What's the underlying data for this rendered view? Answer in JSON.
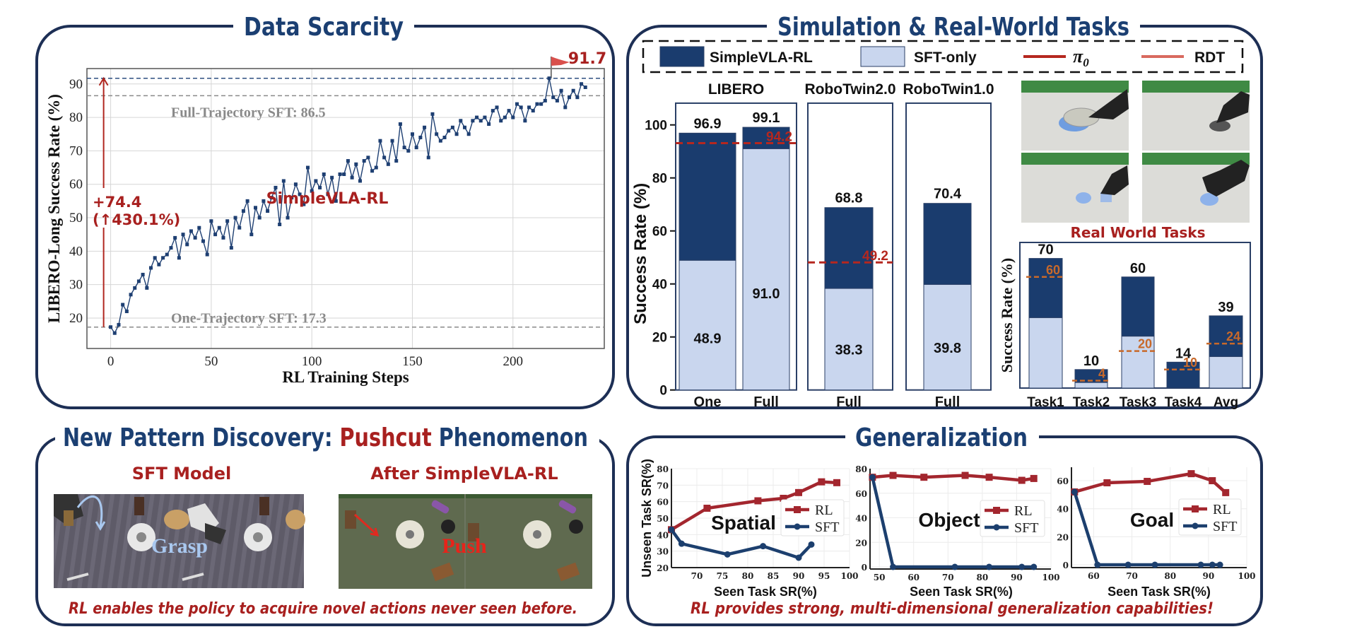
{
  "panels": {
    "data_scarcity": {
      "title": "Data Scarcity"
    },
    "simulation": {
      "title": "Simulation & Real-World Tasks",
      "real_world_label": "Real World Tasks"
    },
    "pushcut": {
      "title_part1": "New Pattern Discovery: ",
      "title_highlight": "Pushcut",
      "title_part2": " Phenomenon",
      "sft_label": "SFT Model",
      "rl_label": "After SimpleVLA-RL",
      "grasp_label": "Grasp",
      "push_label": "Push",
      "caption": "RL enables the policy to acquire novel actions never seen before."
    },
    "generalization": {
      "title": "Generalization",
      "caption": "RL provides strong, multi-dimensional generalization capabilities!"
    }
  },
  "legend": {
    "simplevla": "SimpleVLA-RL",
    "sft_only": "SFT-only",
    "pi0_symbol": "π",
    "pi0_subscript": "0",
    "rdt": "RDT"
  },
  "colors": {
    "title_navy": "#1b3f72",
    "accent_red": "#a8201f",
    "rl_bar": "#1a3c6e",
    "sft_bar": "#c9d6ee",
    "pi0_line": "#b5271f",
    "rdt_line": "#c8692a",
    "gen_rl": "#a3262e",
    "gen_sft": "#1c3f6e",
    "ref_gray": "#8a8a8a"
  },
  "chart_data": [
    {
      "type": "line",
      "xlabel": "RL Training Steps",
      "ylabel": "LIBERO-Long Success Rate (%)",
      "xlim": [
        -11.8,
        245.4
      ],
      "ylim": [
        10.9,
        94.6
      ],
      "xticks": [
        0,
        50,
        100,
        150,
        200
      ],
      "yticks": [
        20,
        30,
        40,
        50,
        60,
        70,
        80,
        90
      ],
      "grid": true,
      "series": [
        {
          "name": "SimpleVLA-RL",
          "x": [
            0,
            2,
            4,
            6,
            8,
            10,
            12,
            14,
            16,
            18,
            20,
            22,
            24,
            26,
            28,
            30,
            32,
            34,
            36,
            38,
            40,
            42,
            44,
            46,
            48,
            50,
            52,
            54,
            56,
            58,
            60,
            62,
            64,
            66,
            68,
            70,
            72,
            74,
            76,
            78,
            80,
            82,
            84,
            86,
            88,
            90,
            92,
            94,
            96,
            98,
            100,
            102,
            104,
            106,
            108,
            110,
            112,
            114,
            116,
            118,
            120,
            122,
            124,
            126,
            128,
            130,
            132,
            134,
            136,
            138,
            140,
            142,
            144,
            146,
            148,
            150,
            152,
            154,
            156,
            158,
            160,
            162,
            164,
            166,
            168,
            170,
            172,
            174,
            176,
            178,
            180,
            182,
            184,
            186,
            188,
            190,
            192,
            194,
            196,
            198,
            200,
            202,
            204,
            206,
            208,
            210,
            212,
            214,
            216,
            218,
            220,
            222,
            224,
            226,
            228,
            230,
            232,
            234,
            236
          ],
          "y": [
            17.3,
            15.5,
            18,
            24,
            22,
            27,
            29,
            31,
            33,
            29,
            35,
            38,
            36,
            38,
            39,
            41,
            44,
            38,
            45,
            42,
            46,
            44,
            47,
            43,
            39,
            49,
            45,
            47,
            44,
            49,
            41,
            50,
            47,
            52,
            55,
            45,
            53,
            50,
            55,
            52,
            56,
            59,
            48,
            61,
            50,
            56,
            60,
            57,
            54,
            65,
            58,
            61,
            59,
            63,
            57,
            62,
            55,
            63,
            63,
            67,
            62,
            66,
            61,
            67,
            68,
            64,
            65,
            73,
            68,
            66,
            73,
            67,
            78,
            71,
            70,
            75,
            71,
            74,
            77,
            68,
            81,
            75,
            73,
            74,
            76,
            77,
            75,
            79,
            77,
            75,
            79,
            80,
            79,
            80,
            78,
            82,
            83,
            79,
            80,
            82,
            80,
            84,
            83,
            79,
            83,
            82,
            84,
            84,
            85,
            91.7,
            86,
            85,
            88,
            83,
            86,
            88,
            86,
            90,
            89
          ]
        }
      ],
      "reference_lines": [
        {
          "value": 91.7,
          "label": "91.7"
        },
        {
          "value": 86.5,
          "label": "Full-Trajectory SFT: 86.5"
        },
        {
          "value": 17.3,
          "label": "One-Trajectory SFT: 17.3"
        }
      ],
      "annotations": {
        "series_label": "SimpleVLA-RL",
        "gain": "+74.4",
        "gain_pct": "(↑430.1%)"
      }
    },
    {
      "type": "bar",
      "stacked": true,
      "ylabel": "Success Rate (%)",
      "ylim": [
        0,
        108.2
      ],
      "yticks": [
        0,
        20,
        40,
        60,
        80,
        100
      ],
      "groups": [
        {
          "title": "LIBERO",
          "bars": [
            {
              "label": "One",
              "rl": 96.9,
              "sft": 48.9
            },
            {
              "label": "Full",
              "rl": 99.1,
              "sft": 91.0
            }
          ],
          "pi0": 94.2
        },
        {
          "title": "RoboTwin2.0",
          "bars": [
            {
              "label": "Full",
              "rl": 68.8,
              "sft": 38.3
            }
          ],
          "pi0": 49.2
        },
        {
          "title": "RoboTwin1.0",
          "bars": [
            {
              "label": "Full",
              "rl": 70.4,
              "sft": 39.8
            }
          ]
        }
      ]
    },
    {
      "type": "bar",
      "stacked": true,
      "ylabel": "Success Rate (%)",
      "ylim": [
        0,
        78.6
      ],
      "categories": [
        "Task1",
        "Task2",
        "Task3",
        "Task4",
        "Avg"
      ],
      "rl": [
        70,
        10,
        60,
        14,
        39
      ],
      "sft": [
        38,
        3,
        28,
        0,
        17
      ],
      "rdt": [
        60,
        4,
        20,
        10,
        24
      ]
    },
    {
      "type": "line",
      "panel_label": "Spatial",
      "xlabel": "Seen Task SR(%)",
      "ylabel": "Unseen Task SR(%)",
      "xlim": [
        65,
        100
      ],
      "ylim": [
        20,
        80
      ],
      "xticks": [
        70,
        75,
        80,
        85,
        90,
        95,
        100
      ],
      "yticks": [
        20,
        30,
        40,
        50,
        60,
        70,
        80
      ],
      "legend": "right",
      "series": [
        {
          "name": "RL",
          "x": [
            65,
            72,
            82,
            87,
            90,
            94.5,
            97.5
          ],
          "y": [
            43,
            56,
            60.5,
            62,
            65.5,
            72,
            71.5
          ]
        },
        {
          "name": "SFT",
          "x": [
            65,
            67,
            76,
            83,
            90,
            92.5
          ],
          "y": [
            43,
            34.5,
            28,
            33,
            26,
            34
          ]
        }
      ]
    },
    {
      "type": "line",
      "panel_label": "Object",
      "xlabel": "Seen Task SR(%)",
      "xlim": [
        47.3,
        100
      ],
      "ylim": [
        -1.7,
        80
      ],
      "xticks": [
        50,
        60,
        70,
        80,
        90,
        100
      ],
      "yticks": [
        0,
        20,
        40,
        60,
        80
      ],
      "legend": "right",
      "series": [
        {
          "name": "RL",
          "x": [
            48,
            54,
            63,
            75,
            82,
            91.5,
            95
          ],
          "y": [
            73,
            74.5,
            73,
            74.5,
            73,
            70.5,
            72
          ]
        },
        {
          "name": "SFT",
          "x": [
            48,
            54,
            72,
            82,
            91.5,
            95
          ],
          "y": [
            73,
            0,
            0,
            0,
            0,
            0
          ]
        }
      ]
    },
    {
      "type": "line",
      "panel_label": "Goal",
      "xlabel": "Seen Task SR(%)",
      "xlim": [
        54.2,
        100
      ],
      "ylim": [
        -2,
        69.6
      ],
      "xticks": [
        60,
        70,
        80,
        90,
        100
      ],
      "yticks": [
        0,
        20,
        40,
        60
      ],
      "legend": "right",
      "series": [
        {
          "name": "RL",
          "x": [
            55,
            63.5,
            74,
            85.5,
            91,
            94.5
          ],
          "y": [
            52,
            58.5,
            59.5,
            65,
            60,
            51.5
          ]
        },
        {
          "name": "SFT",
          "x": [
            55,
            61,
            69,
            76,
            88,
            91,
            93
          ],
          "y": [
            52,
            0,
            0,
            0,
            0,
            0,
            0
          ]
        }
      ]
    }
  ]
}
